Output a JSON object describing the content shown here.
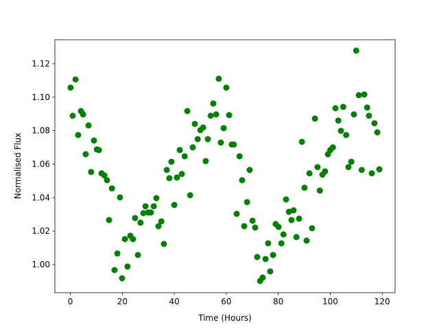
{
  "chart_data": {
    "type": "scatter",
    "xlabel": "Time (Hours)",
    "ylabel": "Normalised Flux",
    "color": "#008000",
    "x": [
      0.1,
      0.9,
      2.0,
      3.0,
      4.1,
      4.9,
      5.9,
      7.0,
      8.0,
      9.1,
      10.2,
      11.0,
      12.0,
      13.1,
      14.1,
      14.9,
      16.0,
      17.0,
      18.1,
      19.1,
      19.9,
      21.0,
      22.0,
      23.1,
      24.1,
      24.9,
      26.0,
      27.0,
      28.1,
      28.9,
      29.9,
      31.0,
      32.1,
      33.1,
      33.9,
      35.0,
      36.0,
      37.1,
      38.1,
      38.9,
      40.0,
      41.0,
      42.1,
      42.9,
      44.0,
      45.0,
      46.1,
      47.1,
      47.9,
      49.0,
      50.0,
      51.1,
      52.1,
      52.9,
      54.0,
      55.0,
      56.1,
      57.1,
      57.9,
      59.0,
      60.0,
      61.1,
      62.1,
      62.9,
      64.0,
      65.1,
      66.1,
      66.9,
      68.0,
      69.0,
      70.1,
      71.1,
      71.9,
      73.0,
      74.0,
      75.1,
      76.1,
      76.9,
      78.0,
      79.0,
      80.1,
      81.2,
      82.0,
      83.0,
      84.1,
      85.1,
      85.9,
      87.0,
      88.0,
      89.1,
      90.1,
      90.9,
      92.0,
      93.0,
      94.1,
      95.1,
      96.0,
      97.0,
      98.0,
      99.1,
      100.0,
      101.0,
      102.0,
      103.1,
      104.1,
      105.0,
      106.1,
      107.0,
      108.1,
      109.1,
      110.0,
      111.0,
      112.1,
      113.1,
      114.2,
      114.9,
      116.0,
      117.0,
      118.1,
      118.9
    ],
    "values": [
      1.1057,
      1.0889,
      1.1106,
      1.0774,
      1.0917,
      1.0897,
      1.0659,
      1.0831,
      1.0553,
      1.0741,
      1.0688,
      1.0684,
      1.0545,
      1.0532,
      1.0504,
      1.0266,
      1.0455,
      0.9967,
      1.0066,
      1.0401,
      0.9918,
      1.0152,
      0.9988,
      1.0172,
      1.0152,
      1.0278,
      1.0057,
      1.025,
      1.0307,
      1.0348,
      1.0311,
      1.0311,
      1.0348,
      1.0397,
      1.0229,
      1.0258,
      1.0123,
      1.0565,
      1.0516,
      1.0614,
      1.0356,
      1.052,
      1.0684,
      1.0541,
      1.0647,
      1.0917,
      1.0414,
      1.07,
      1.084,
      1.0749,
      1.0803,
      1.0819,
      1.0618,
      1.0749,
      1.0889,
      1.0962,
      1.0897,
      1.111,
      1.0729,
      1.0815,
      1.1057,
      1.0893,
      1.0717,
      1.0717,
      1.0303,
      1.0647,
      1.0504,
      1.0229,
      1.0373,
      1.0565,
      1.0262,
      1.0221,
      1.0045,
      0.9902,
      0.9922,
      1.0033,
      1.0127,
      0.9959,
      1.0057,
      1.0242,
      1.0225,
      1.0127,
      1.018,
      1.0389,
      1.0315,
      1.0266,
      1.0324,
      1.0164,
      1.0274,
      1.0733,
      1.0459,
      1.0143,
      1.0545,
      1.0217,
      1.0872,
      1.0582,
      1.0442,
      1.0537,
      1.0557,
      1.0659,
      1.0684,
      1.07,
      1.0934,
      1.086,
      1.0799,
      1.0942,
      1.0774,
      1.0582,
      1.0614,
      1.0897,
      1.1278,
      1.1012,
      1.0565,
      1.1016,
      1.0938,
      1.0889,
      1.0545,
      1.0844,
      1.079,
      1.0569
    ],
    "xlim": [
      -5.95,
      124.95
    ],
    "ylim": [
      0.9832,
      1.1343
    ],
    "xticks": [
      0,
      20,
      40,
      60,
      80,
      100,
      120
    ],
    "yticks": [
      {
        "value": 1,
        "label": "1.00"
      },
      1.02,
      1.04,
      1.06,
      1.08,
      {
        "value": 1.1,
        "label": "1.10"
      },
      1.12
    ]
  }
}
